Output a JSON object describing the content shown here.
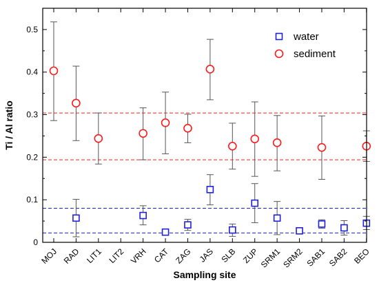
{
  "chart_data": {
    "type": "scatter",
    "title": "",
    "xlabel": "Sampling site",
    "ylabel": "Ti / Al ratio",
    "ylim": [
      0,
      0.55
    ],
    "yticks": [
      0,
      0.1,
      0.2,
      0.3,
      0.4,
      0.5
    ],
    "ytick_labels": [
      "0",
      "0.1",
      "0.2",
      "0.3",
      "0.4",
      "0.5"
    ],
    "categories": [
      "MOJ",
      "RAD",
      "LIT1",
      "LIT2",
      "VRH",
      "CAT",
      "ZAG",
      "JAS",
      "SLB",
      "ZUP",
      "SRM1",
      "SRM2",
      "SAB1",
      "SAB2",
      "BEO"
    ],
    "grid": false,
    "legend_position": "top-right",
    "series": [
      {
        "name": "water",
        "marker": "square",
        "color": "#1f1fe0",
        "values": [
          null,
          0.057,
          null,
          null,
          0.063,
          0.024,
          0.041,
          0.124,
          0.029,
          0.092,
          0.057,
          0.027,
          0.043,
          0.034,
          0.045
        ],
        "err_low": [
          null,
          0.013,
          null,
          null,
          0.041,
          0.018,
          0.028,
          0.088,
          0.014,
          0.046,
          0.018,
          0.02,
          0.033,
          0.017,
          0.03
        ],
        "err_high": [
          null,
          0.101,
          null,
          null,
          0.086,
          0.03,
          0.054,
          0.159,
          0.043,
          0.138,
          0.096,
          0.034,
          0.053,
          0.051,
          0.061
        ],
        "reference_lines": [
          0.08,
          0.022
        ]
      },
      {
        "name": "sediment",
        "marker": "circle",
        "color": "#ff1a1a",
        "values": [
          0.403,
          0.327,
          0.244,
          null,
          0.256,
          0.281,
          0.268,
          0.407,
          0.226,
          0.243,
          0.234,
          null,
          0.223,
          null,
          0.226
        ],
        "err_low": [
          0.286,
          0.239,
          0.184,
          null,
          0.194,
          0.208,
          0.234,
          0.335,
          0.172,
          0.155,
          0.168,
          null,
          0.148,
          null,
          0.19
        ],
        "err_high": [
          0.518,
          0.414,
          0.304,
          null,
          0.316,
          0.353,
          0.301,
          0.477,
          0.28,
          0.33,
          0.298,
          null,
          0.297,
          null,
          0.262
        ],
        "reference_lines": [
          0.304,
          0.194
        ]
      }
    ]
  }
}
